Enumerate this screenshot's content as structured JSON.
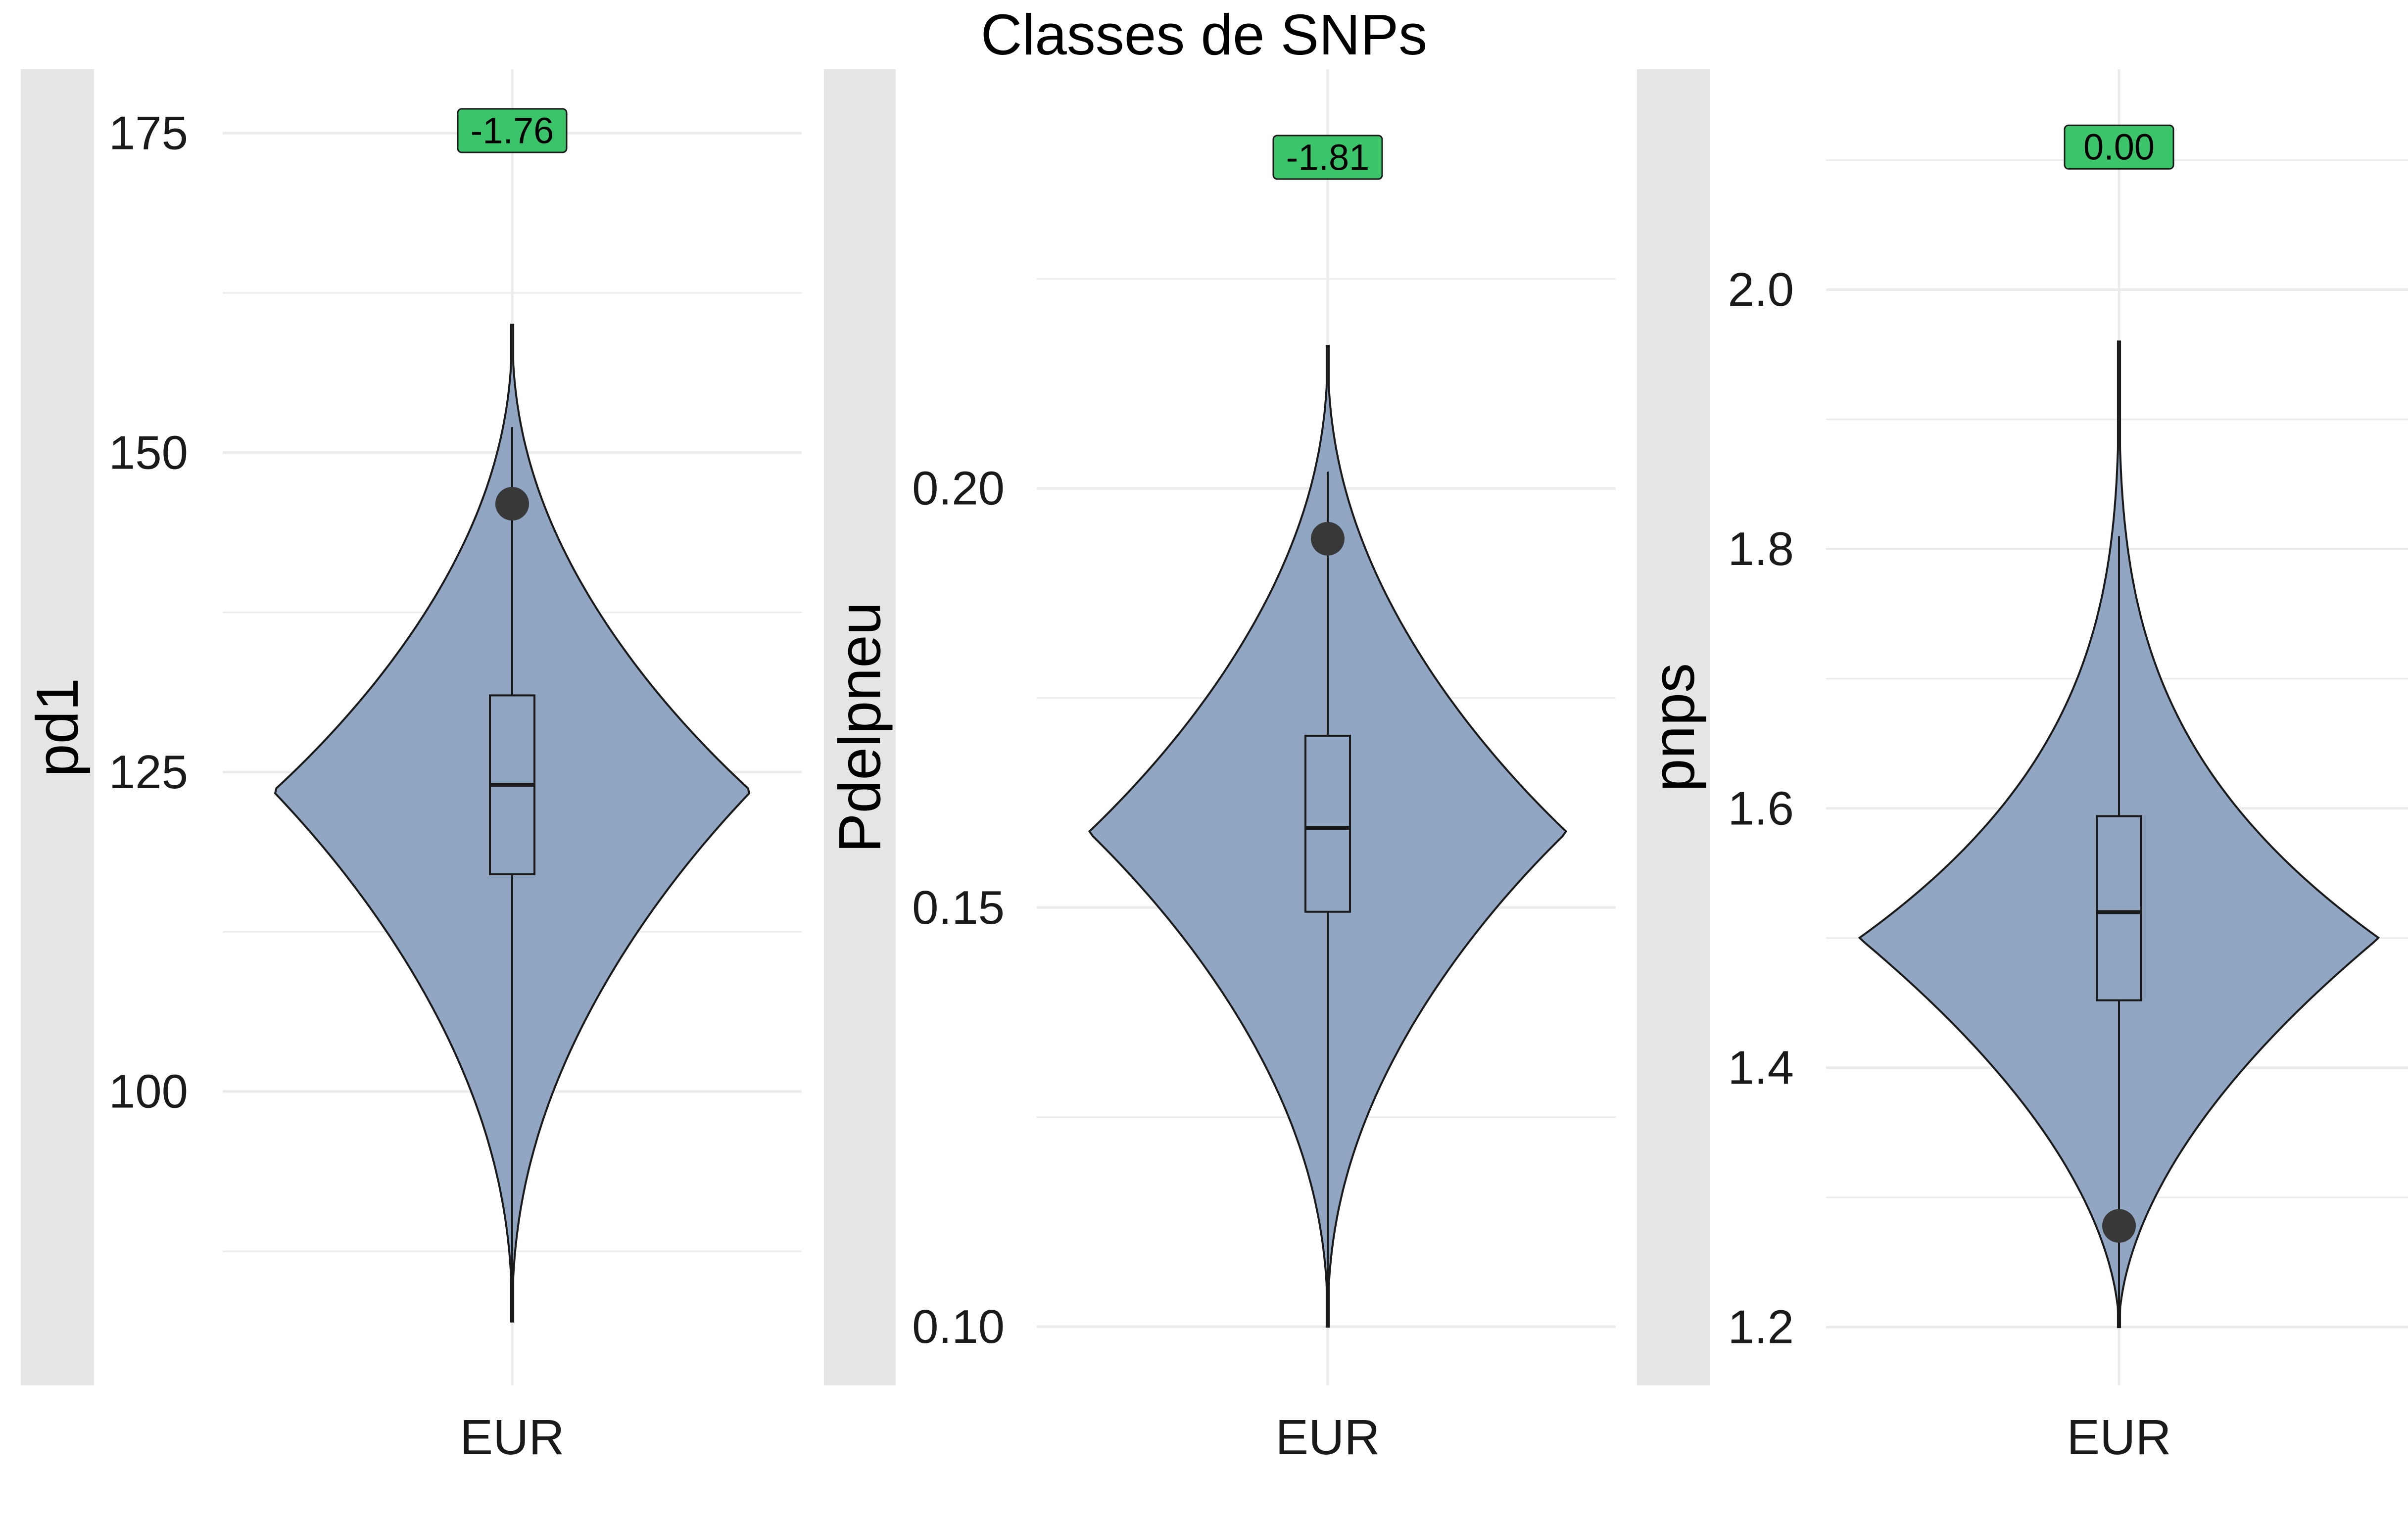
{
  "title": "Classes de SNPs",
  "colors": {
    "violin_fill": "#91A6C3",
    "strip_bg": "#E5E5E5",
    "grid": "#EBEBEB",
    "observed_point": "#383838",
    "label_box": "#3CC46A",
    "line": "#1A1A1A"
  },
  "chart_data": [
    {
      "type": "violin",
      "ylabel": "pd1",
      "categories": [
        "EUR"
      ],
      "yticks": [
        "100",
        "125",
        "150",
        "175"
      ],
      "ylim": [
        77,
        180
      ],
      "violin": {
        "min": 82,
        "max": 160,
        "peak": 123.5,
        "shape": "symmetric-diamond"
      },
      "box": {
        "q1": 117,
        "median": 124,
        "q3": 131,
        "whisker_low": 82,
        "whisker_high": 152
      },
      "observed_value": 146,
      "label": "-1.76",
      "label_y": 175.2
    },
    {
      "type": "violin",
      "ylabel": "Pdelpneu",
      "categories": [
        "EUR"
      ],
      "yticks": [
        "0.10",
        "0.15",
        "0.20"
      ],
      "ylim": [
        0.093,
        0.25
      ],
      "violin": {
        "min": 0.1,
        "max": 0.217,
        "peak": 0.159,
        "shape": "symmetric-diamond"
      },
      "box": {
        "q1": 0.1495,
        "median": 0.1595,
        "q3": 0.1705,
        "whisker_low": 0.1,
        "whisker_high": 0.202
      },
      "observed_value": 0.194,
      "label": "-1.81",
      "label_y": 0.2395
    },
    {
      "type": "violin",
      "ylabel": "pnps",
      "categories": [
        "EUR"
      ],
      "yticks": [
        "1.2",
        "1.4",
        "1.6",
        "1.8",
        "2.0"
      ],
      "ylim": [
        1.155,
        2.17
      ],
      "violin": {
        "min": 1.2,
        "max": 1.96,
        "peak": 1.5,
        "shape": "right-skewed"
      },
      "box": {
        "q1": 1.452,
        "median": 1.52,
        "q3": 1.594,
        "whisker_low": 1.2,
        "whisker_high": 1.81
      },
      "observed_value": 1.278,
      "label": "0.00",
      "label_y": 2.11
    }
  ]
}
